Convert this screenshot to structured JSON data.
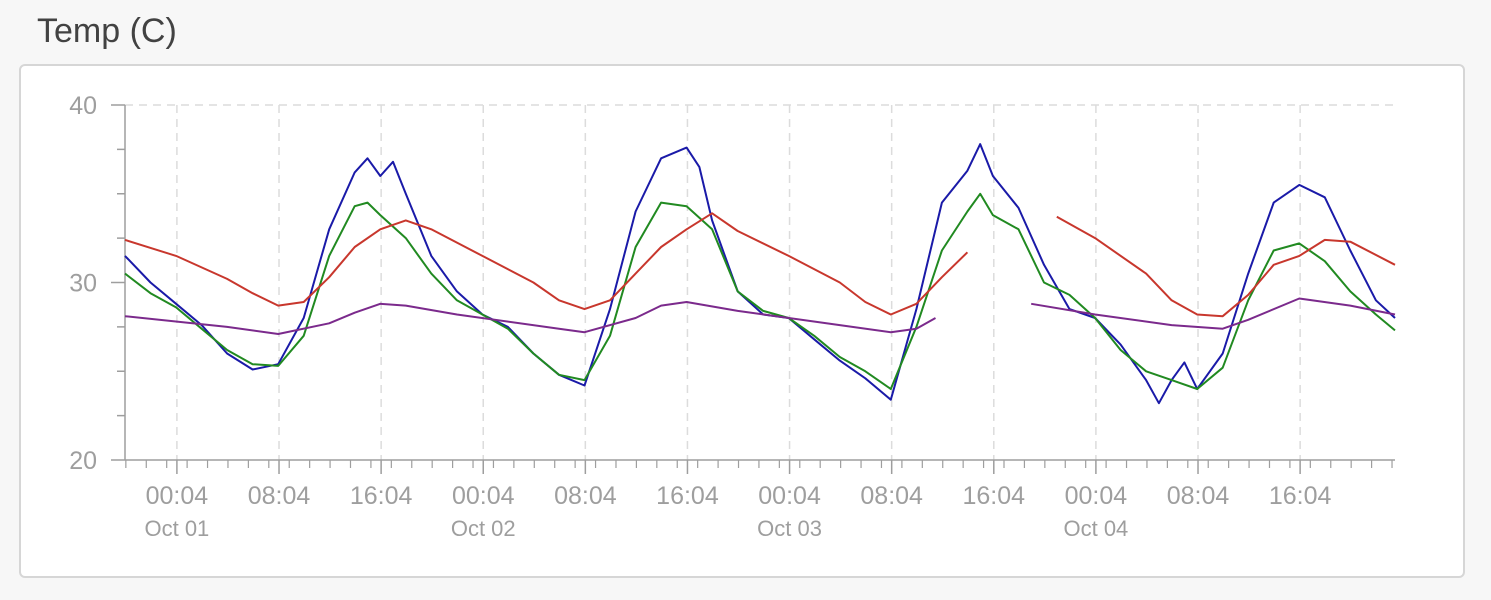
{
  "page": {
    "title": "Temp (C)"
  },
  "chart_data": {
    "type": "line",
    "title": "Temp (C)",
    "xlabel": "",
    "ylabel": "",
    "x_axis": {
      "type": "time",
      "start": "2023-09-30T20:00",
      "end": "2023-10-04T23:30",
      "tick_labels": [
        {
          "time": "2023-10-01T00:04",
          "label": "00:04",
          "date_label": "Oct 01"
        },
        {
          "time": "2023-10-01T08:04",
          "label": "08:04",
          "date_label": ""
        },
        {
          "time": "2023-10-01T16:04",
          "label": "16:04",
          "date_label": ""
        },
        {
          "time": "2023-10-02T00:04",
          "label": "00:04",
          "date_label": "Oct 02"
        },
        {
          "time": "2023-10-02T08:04",
          "label": "08:04",
          "date_label": ""
        },
        {
          "time": "2023-10-02T16:04",
          "label": "16:04",
          "date_label": ""
        },
        {
          "time": "2023-10-03T00:04",
          "label": "00:04",
          "date_label": "Oct 03"
        },
        {
          "time": "2023-10-03T08:04",
          "label": "08:04",
          "date_label": ""
        },
        {
          "time": "2023-10-03T16:04",
          "label": "16:04",
          "date_label": ""
        },
        {
          "time": "2023-10-04T00:04",
          "label": "00:04",
          "date_label": "Oct 04"
        },
        {
          "time": "2023-10-04T08:04",
          "label": "08:04",
          "date_label": ""
        },
        {
          "time": "2023-10-04T16:04",
          "label": "16:04",
          "date_label": ""
        }
      ]
    },
    "y_axis": {
      "ylim": [
        20,
        40
      ],
      "tick_labels": [
        "20",
        "30",
        "40"
      ]
    },
    "grid": true,
    "legend": "none",
    "series": [
      {
        "color": "#1a1aa8",
        "points": [
          [
            "2023-09-30T20:00",
            31.5
          ],
          [
            "2023-09-30T22:00",
            30.0
          ],
          [
            "2023-10-01T00:00",
            28.8
          ],
          [
            "2023-10-01T02:00",
            27.6
          ],
          [
            "2023-10-01T04:00",
            26.0
          ],
          [
            "2023-10-01T06:00",
            25.1
          ],
          [
            "2023-10-01T08:00",
            25.4
          ],
          [
            "2023-10-01T10:00",
            28.0
          ],
          [
            "2023-10-01T12:00",
            33.0
          ],
          [
            "2023-10-01T14:00",
            36.2
          ],
          [
            "2023-10-01T15:00",
            37.0
          ],
          [
            "2023-10-01T16:00",
            36.0
          ],
          [
            "2023-10-01T17:00",
            36.8
          ],
          [
            "2023-10-01T18:00",
            35.0
          ],
          [
            "2023-10-01T20:00",
            31.5
          ],
          [
            "2023-10-01T22:00",
            29.5
          ],
          [
            "2023-10-02T00:00",
            28.2
          ],
          [
            "2023-10-02T02:00",
            27.5
          ],
          [
            "2023-10-02T04:00",
            26.0
          ],
          [
            "2023-10-02T06:00",
            24.8
          ],
          [
            "2023-10-02T08:00",
            24.2
          ],
          [
            "2023-10-02T10:00",
            28.5
          ],
          [
            "2023-10-02T12:00",
            34.0
          ],
          [
            "2023-10-02T14:00",
            37.0
          ],
          [
            "2023-10-02T16:00",
            37.6
          ],
          [
            "2023-10-02T17:00",
            36.5
          ],
          [
            "2023-10-02T18:00",
            33.5
          ],
          [
            "2023-10-02T20:00",
            29.5
          ],
          [
            "2023-10-02T22:00",
            28.2
          ],
          [
            "2023-10-03T00:00",
            28.0
          ],
          [
            "2023-10-03T02:00",
            26.8
          ],
          [
            "2023-10-03T04:00",
            25.6
          ],
          [
            "2023-10-03T06:00",
            24.6
          ],
          [
            "2023-10-03T08:00",
            23.4
          ],
          [
            "2023-10-03T10:00",
            28.5
          ],
          [
            "2023-10-03T12:00",
            34.5
          ],
          [
            "2023-10-03T14:00",
            36.3
          ],
          [
            "2023-10-03T15:00",
            37.8
          ],
          [
            "2023-10-03T16:00",
            36.0
          ],
          [
            "2023-10-03T18:00",
            34.2
          ],
          [
            "2023-10-03T20:00",
            31.0
          ],
          [
            "2023-10-03T22:00",
            28.5
          ],
          [
            "2023-10-04T00:00",
            28.0
          ],
          [
            "2023-10-04T02:00",
            26.5
          ],
          [
            "2023-10-04T04:00",
            24.5
          ],
          [
            "2023-10-04T05:00",
            23.2
          ],
          [
            "2023-10-04T06:00",
            24.5
          ],
          [
            "2023-10-04T07:00",
            25.5
          ],
          [
            "2023-10-04T08:00",
            24.0
          ],
          [
            "2023-10-04T10:00",
            26.0
          ],
          [
            "2023-10-04T12:00",
            30.5
          ],
          [
            "2023-10-04T14:00",
            34.5
          ],
          [
            "2023-10-04T16:00",
            35.5
          ],
          [
            "2023-10-04T18:00",
            34.8
          ],
          [
            "2023-10-04T20:00",
            31.8
          ],
          [
            "2023-10-04T22:00",
            29.0
          ],
          [
            "2023-10-04T23:30",
            28.0
          ]
        ]
      },
      {
        "color": "#218a21",
        "points": [
          [
            "2023-09-30T20:00",
            30.5
          ],
          [
            "2023-09-30T22:00",
            29.4
          ],
          [
            "2023-10-01T00:00",
            28.6
          ],
          [
            "2023-10-01T02:00",
            27.4
          ],
          [
            "2023-10-01T04:00",
            26.2
          ],
          [
            "2023-10-01T06:00",
            25.4
          ],
          [
            "2023-10-01T08:00",
            25.3
          ],
          [
            "2023-10-01T10:00",
            27.0
          ],
          [
            "2023-10-01T12:00",
            31.5
          ],
          [
            "2023-10-01T14:00",
            34.3
          ],
          [
            "2023-10-01T15:00",
            34.5
          ],
          [
            "2023-10-01T16:00",
            33.8
          ],
          [
            "2023-10-01T18:00",
            32.5
          ],
          [
            "2023-10-01T20:00",
            30.5
          ],
          [
            "2023-10-01T22:00",
            29.0
          ],
          [
            "2023-10-02T00:00",
            28.2
          ],
          [
            "2023-10-02T02:00",
            27.4
          ],
          [
            "2023-10-02T04:00",
            26.0
          ],
          [
            "2023-10-02T06:00",
            24.8
          ],
          [
            "2023-10-02T08:00",
            24.5
          ],
          [
            "2023-10-02T10:00",
            27.0
          ],
          [
            "2023-10-02T12:00",
            32.0
          ],
          [
            "2023-10-02T14:00",
            34.5
          ],
          [
            "2023-10-02T16:00",
            34.3
          ],
          [
            "2023-10-02T18:00",
            33.0
          ],
          [
            "2023-10-02T20:00",
            29.5
          ],
          [
            "2023-10-02T22:00",
            28.4
          ],
          [
            "2023-10-03T00:00",
            28.0
          ],
          [
            "2023-10-03T02:00",
            27.0
          ],
          [
            "2023-10-03T04:00",
            25.8
          ],
          [
            "2023-10-03T06:00",
            25.0
          ],
          [
            "2023-10-03T08:00",
            24.0
          ],
          [
            "2023-10-03T10:00",
            27.5
          ],
          [
            "2023-10-03T12:00",
            31.8
          ],
          [
            "2023-10-03T14:00",
            34.0
          ],
          [
            "2023-10-03T15:00",
            35.0
          ],
          [
            "2023-10-03T16:00",
            33.8
          ],
          [
            "2023-10-03T18:00",
            33.0
          ],
          [
            "2023-10-03T20:00",
            30.0
          ],
          [
            "2023-10-03T22:00",
            29.3
          ],
          [
            "2023-10-04T00:00",
            28.0
          ],
          [
            "2023-10-04T02:00",
            26.2
          ],
          [
            "2023-10-04T04:00",
            25.0
          ],
          [
            "2023-10-04T06:00",
            24.5
          ],
          [
            "2023-10-04T08:00",
            24.0
          ],
          [
            "2023-10-04T10:00",
            25.2
          ],
          [
            "2023-10-04T12:00",
            29.0
          ],
          [
            "2023-10-04T14:00",
            31.8
          ],
          [
            "2023-10-04T16:00",
            32.2
          ],
          [
            "2023-10-04T18:00",
            31.2
          ],
          [
            "2023-10-04T20:00",
            29.5
          ],
          [
            "2023-10-04T22:00",
            28.2
          ],
          [
            "2023-10-04T23:30",
            27.3
          ]
        ]
      },
      {
        "color": "#c8372d",
        "points": [
          [
            "2023-09-30T20:00",
            32.4
          ],
          [
            "2023-10-01T00:00",
            31.5
          ],
          [
            "2023-10-01T04:00",
            30.2
          ],
          [
            "2023-10-01T06:00",
            29.4
          ],
          [
            "2023-10-01T08:00",
            28.7
          ],
          [
            "2023-10-01T10:00",
            28.9
          ],
          [
            "2023-10-01T12:00",
            30.3
          ],
          [
            "2023-10-01T14:00",
            32.0
          ],
          [
            "2023-10-01T16:00",
            33.0
          ],
          [
            "2023-10-01T18:00",
            33.5
          ],
          [
            "2023-10-01T20:00",
            33.0
          ],
          [
            "2023-10-02T00:00",
            31.5
          ],
          [
            "2023-10-02T04:00",
            30.0
          ],
          [
            "2023-10-02T06:00",
            29.0
          ],
          [
            "2023-10-02T08:00",
            28.5
          ],
          [
            "2023-10-02T10:00",
            29.0
          ],
          [
            "2023-10-02T12:00",
            30.5
          ],
          [
            "2023-10-02T14:00",
            32.0
          ],
          [
            "2023-10-02T16:00",
            33.0
          ],
          [
            "2023-10-02T18:00",
            33.9
          ],
          [
            "2023-10-02T20:00",
            32.9
          ],
          [
            "2023-10-03T00:00",
            31.5
          ],
          [
            "2023-10-03T04:00",
            30.0
          ],
          [
            "2023-10-03T06:00",
            28.9
          ],
          [
            "2023-10-03T08:00",
            28.2
          ],
          [
            "2023-10-03T10:00",
            28.8
          ],
          [
            "2023-10-03T12:00",
            30.3
          ],
          [
            "2023-10-03T14:00",
            31.7
          ],
          null,
          [
            "2023-10-03T21:00",
            33.7
          ],
          [
            "2023-10-04T00:00",
            32.5
          ],
          [
            "2023-10-04T04:00",
            30.5
          ],
          [
            "2023-10-04T06:00",
            29.0
          ],
          [
            "2023-10-04T08:00",
            28.2
          ],
          [
            "2023-10-04T10:00",
            28.1
          ],
          [
            "2023-10-04T12:00",
            29.3
          ],
          [
            "2023-10-04T14:00",
            31.0
          ],
          [
            "2023-10-04T16:00",
            31.5
          ],
          [
            "2023-10-04T18:00",
            32.4
          ],
          [
            "2023-10-04T20:00",
            32.3
          ],
          [
            "2023-10-04T23:30",
            31.0
          ]
        ]
      },
      {
        "color": "#7b2a8c",
        "points": [
          [
            "2023-09-30T20:00",
            28.1
          ],
          [
            "2023-10-01T04:00",
            27.5
          ],
          [
            "2023-10-01T08:00",
            27.1
          ],
          [
            "2023-10-01T12:00",
            27.7
          ],
          [
            "2023-10-01T14:00",
            28.3
          ],
          [
            "2023-10-01T16:00",
            28.8
          ],
          [
            "2023-10-01T18:00",
            28.7
          ],
          [
            "2023-10-01T22:00",
            28.2
          ],
          [
            "2023-10-02T06:00",
            27.4
          ],
          [
            "2023-10-02T08:00",
            27.2
          ],
          [
            "2023-10-02T12:00",
            28.0
          ],
          [
            "2023-10-02T14:00",
            28.7
          ],
          [
            "2023-10-02T16:00",
            28.9
          ],
          [
            "2023-10-02T20:00",
            28.4
          ],
          [
            "2023-10-03T04:00",
            27.6
          ],
          [
            "2023-10-03T08:00",
            27.2
          ],
          [
            "2023-10-03T10:00",
            27.4
          ],
          [
            "2023-10-03T11:30",
            28.0
          ],
          null,
          [
            "2023-10-03T19:00",
            28.8
          ],
          [
            "2023-10-04T00:00",
            28.2
          ],
          [
            "2023-10-04T06:00",
            27.6
          ],
          [
            "2023-10-04T10:00",
            27.4
          ],
          [
            "2023-10-04T12:00",
            27.9
          ],
          [
            "2023-10-04T16:00",
            29.1
          ],
          [
            "2023-10-04T20:00",
            28.7
          ],
          [
            "2023-10-04T23:30",
            28.2
          ]
        ]
      }
    ]
  }
}
